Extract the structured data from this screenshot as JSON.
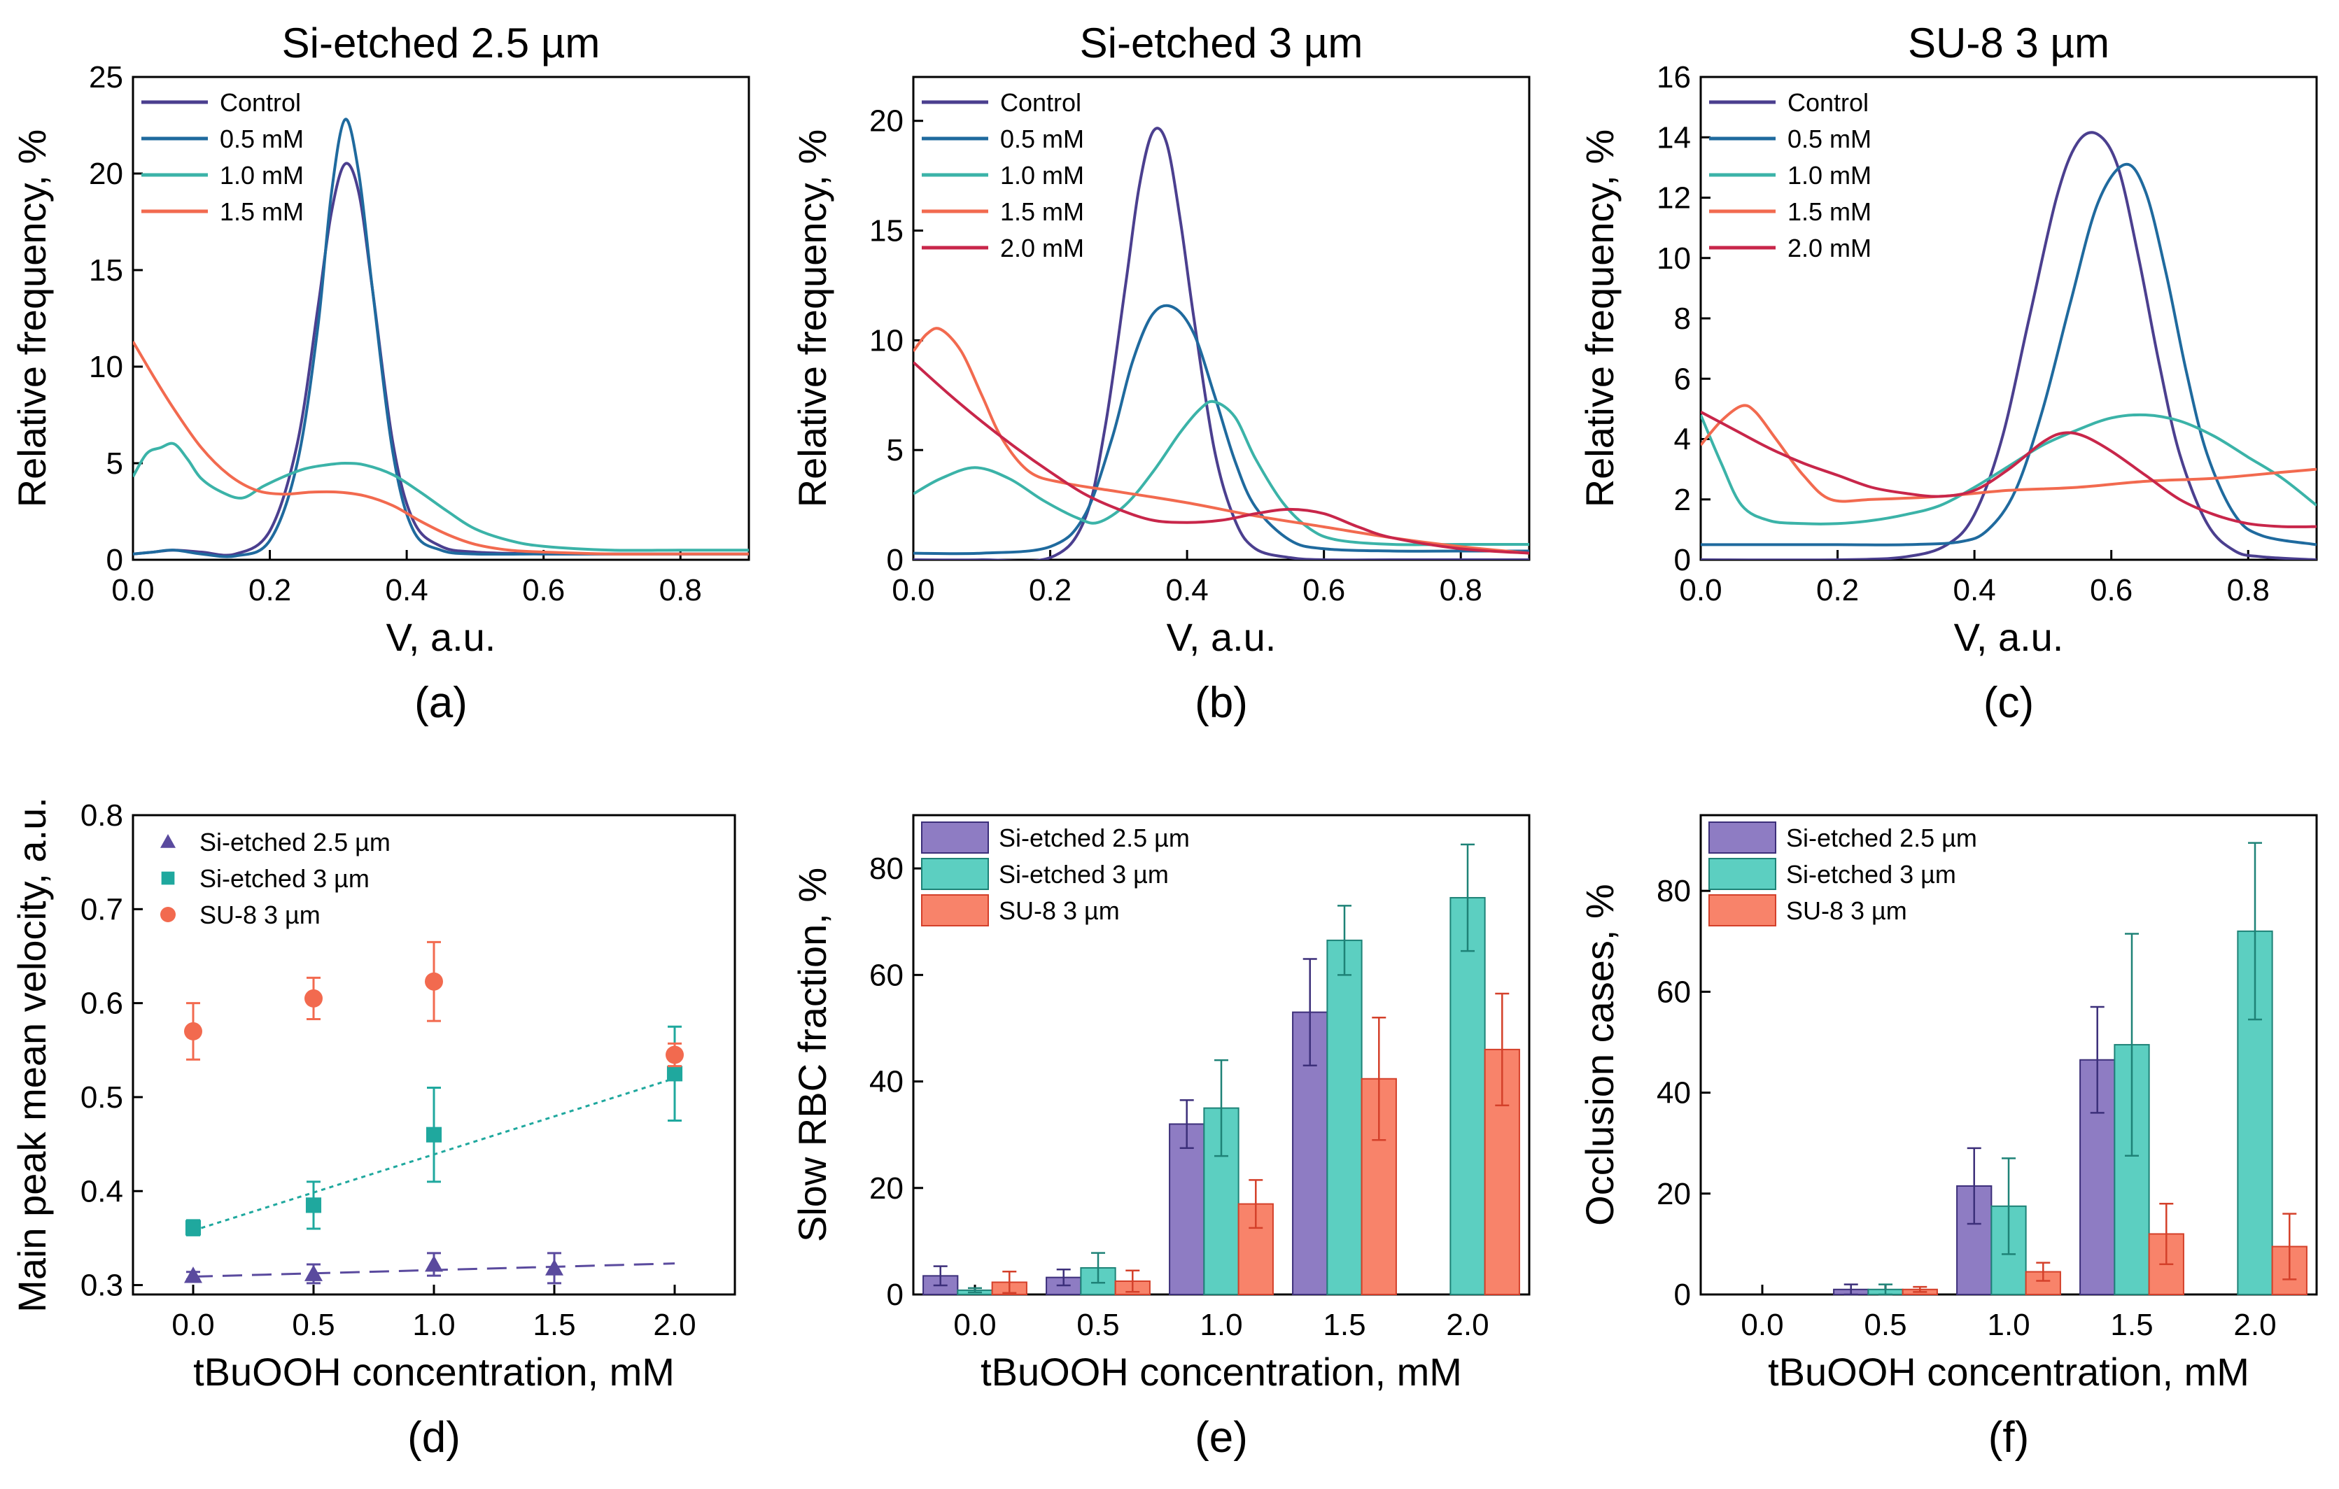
{
  "chart_data": [
    {
      "id": "a",
      "type": "line",
      "title": "Si-etched 2.5 µm",
      "xlabel": "V, a.u.",
      "ylabel": "Relative frequency, %",
      "panel_label": "(a)",
      "xlim": [
        0,
        0.9
      ],
      "ylim": [
        0,
        25
      ],
      "xticks": [
        "0.0",
        "0.2",
        "0.4",
        "0.6",
        "0.8"
      ],
      "yticks": [
        "0",
        "5",
        "10",
        "15",
        "20",
        "25"
      ],
      "legend_position": "top-left",
      "series": [
        {
          "name": "Control",
          "color": "#4B3F8F",
          "x": [
            0,
            0.03,
            0.06,
            0.1,
            0.15,
            0.2,
            0.24,
            0.27,
            0.29,
            0.31,
            0.33,
            0.35,
            0.38,
            0.41,
            0.45,
            0.5,
            0.6,
            0.7,
            0.8,
            0.9
          ],
          "y": [
            0.3,
            0.4,
            0.5,
            0.4,
            0.3,
            1.5,
            6,
            13,
            18,
            20.5,
            19,
            14,
            6,
            2,
            0.7,
            0.4,
            0.3,
            0.3,
            0.3,
            0.3
          ]
        },
        {
          "name": "0.5 mM",
          "color": "#1F6A9E",
          "x": [
            0,
            0.03,
            0.06,
            0.1,
            0.15,
            0.2,
            0.24,
            0.27,
            0.29,
            0.31,
            0.33,
            0.35,
            0.38,
            0.41,
            0.45,
            0.5,
            0.6,
            0.7,
            0.8,
            0.9
          ],
          "y": [
            0.3,
            0.4,
            0.5,
            0.3,
            0.2,
            1,
            5,
            12,
            19,
            22.8,
            20,
            14,
            5.5,
            1.5,
            0.5,
            0.3,
            0.3,
            0.3,
            0.3,
            0.3
          ]
        },
        {
          "name": "1.0 mM",
          "color": "#3BB3A8",
          "x": [
            0,
            0.02,
            0.04,
            0.06,
            0.08,
            0.1,
            0.13,
            0.16,
            0.19,
            0.22,
            0.25,
            0.28,
            0.31,
            0.34,
            0.38,
            0.42,
            0.46,
            0.5,
            0.55,
            0.6,
            0.7,
            0.8,
            0.9
          ],
          "y": [
            4.3,
            5.5,
            5.8,
            6,
            5.2,
            4.2,
            3.5,
            3.2,
            3.8,
            4.3,
            4.7,
            4.9,
            5,
            4.9,
            4.4,
            3.5,
            2.5,
            1.6,
            1,
            0.7,
            0.5,
            0.5,
            0.5
          ]
        },
        {
          "name": "1.5 mM",
          "color": "#F26A4F",
          "x": [
            0,
            0.03,
            0.06,
            0.1,
            0.14,
            0.18,
            0.22,
            0.26,
            0.3,
            0.34,
            0.38,
            0.42,
            0.46,
            0.5,
            0.55,
            0.6,
            0.7,
            0.8,
            0.9
          ],
          "y": [
            11.3,
            9.5,
            7.8,
            5.8,
            4.4,
            3.6,
            3.4,
            3.5,
            3.5,
            3.3,
            2.8,
            2,
            1.3,
            0.8,
            0.5,
            0.4,
            0.3,
            0.3,
            0.3
          ]
        }
      ]
    },
    {
      "id": "b",
      "type": "line",
      "title": "Si-etched 3 µm",
      "xlabel": "V, a.u.",
      "ylabel": "Relative frequency, %",
      "panel_label": "(b)",
      "xlim": [
        0,
        0.9
      ],
      "ylim": [
        0,
        22
      ],
      "xticks": [
        "0.0",
        "0.2",
        "0.4",
        "0.6",
        "0.8"
      ],
      "yticks": [
        "0",
        "5",
        "10",
        "15",
        "20"
      ],
      "legend_position": "top-left",
      "series": [
        {
          "name": "Control",
          "color": "#4B3F8F",
          "x": [
            0,
            0.1,
            0.2,
            0.25,
            0.28,
            0.31,
            0.33,
            0.35,
            0.37,
            0.39,
            0.41,
            0.44,
            0.47,
            0.5,
            0.55,
            0.6,
            0.7,
            0.8,
            0.9
          ],
          "y": [
            0,
            0,
            0.1,
            1.8,
            6,
            12.5,
            17,
            19.5,
            19,
            15.5,
            11,
            5,
            1.8,
            0.5,
            0.1,
            0,
            0,
            0,
            0
          ]
        },
        {
          "name": "0.5 mM",
          "color": "#1F6A9E",
          "x": [
            0,
            0.1,
            0.2,
            0.25,
            0.29,
            0.32,
            0.35,
            0.38,
            0.41,
            0.44,
            0.47,
            0.5,
            0.55,
            0.6,
            0.7,
            0.8,
            0.9
          ],
          "y": [
            0.3,
            0.3,
            0.6,
            2,
            5.5,
            9,
            11.2,
            11.5,
            10.3,
            7.5,
            4.5,
            2.4,
            0.9,
            0.5,
            0.4,
            0.4,
            0.4
          ]
        },
        {
          "name": "1.0 mM",
          "color": "#3BB3A8",
          "x": [
            0,
            0.04,
            0.09,
            0.14,
            0.19,
            0.24,
            0.27,
            0.31,
            0.35,
            0.39,
            0.42,
            0.44,
            0.47,
            0.5,
            0.54,
            0.58,
            0.62,
            0.7,
            0.8,
            0.9
          ],
          "y": [
            3,
            3.7,
            4.2,
            3.7,
            2.7,
            1.9,
            1.7,
            2.5,
            4,
            5.8,
            6.9,
            7.2,
            6.5,
            4.6,
            2.6,
            1.4,
            0.9,
            0.7,
            0.7,
            0.7
          ]
        },
        {
          "name": "1.5 mM",
          "color": "#F26A4F",
          "x": [
            0,
            0.02,
            0.04,
            0.07,
            0.1,
            0.13,
            0.17,
            0.22,
            0.3,
            0.4,
            0.5,
            0.6,
            0.7,
            0.8,
            0.9
          ],
          "y": [
            9.5,
            10.3,
            10.5,
            9.5,
            7.5,
            5.5,
            4,
            3.5,
            3.1,
            2.6,
            2,
            1.5,
            1,
            0.6,
            0.3
          ]
        },
        {
          "name": "2.0 mM",
          "color": "#C8264A",
          "x": [
            0,
            0.05,
            0.1,
            0.15,
            0.2,
            0.25,
            0.3,
            0.35,
            0.4,
            0.45,
            0.5,
            0.55,
            0.6,
            0.65,
            0.7,
            0.8,
            0.9
          ],
          "y": [
            9,
            7.6,
            6.3,
            5.1,
            4,
            3,
            2.3,
            1.8,
            1.7,
            1.8,
            2.1,
            2.3,
            2.1,
            1.5,
            1,
            0.5,
            0.3
          ]
        }
      ]
    },
    {
      "id": "c",
      "type": "line",
      "title": "SU-8 3 µm",
      "xlabel": "V, a.u.",
      "ylabel": "Relative frequency, %",
      "panel_label": "(c)",
      "xlim": [
        0,
        0.9
      ],
      "ylim": [
        0,
        16
      ],
      "xticks": [
        "0.0",
        "0.2",
        "0.4",
        "0.6",
        "0.8"
      ],
      "yticks": [
        "0",
        "2",
        "4",
        "6",
        "8",
        "10",
        "12",
        "14",
        "16"
      ],
      "legend_position": "top-left",
      "series": [
        {
          "name": "Control",
          "color": "#4B3F8F",
          "x": [
            0,
            0.2,
            0.3,
            0.36,
            0.4,
            0.44,
            0.48,
            0.52,
            0.55,
            0.58,
            0.61,
            0.64,
            0.67,
            0.7,
            0.74,
            0.78,
            0.82,
            0.9
          ],
          "y": [
            0,
            0,
            0.1,
            0.5,
            1.5,
            4,
            8,
            12,
            13.8,
            14.1,
            13,
            10,
            6.5,
            3.5,
            1.2,
            0.3,
            0.1,
            0
          ]
        },
        {
          "name": "0.5 mM",
          "color": "#1F6A9E",
          "x": [
            0,
            0.1,
            0.2,
            0.3,
            0.38,
            0.42,
            0.46,
            0.5,
            0.54,
            0.58,
            0.62,
            0.65,
            0.68,
            0.71,
            0.74,
            0.78,
            0.82,
            0.9
          ],
          "y": [
            0.5,
            0.5,
            0.5,
            0.5,
            0.6,
            1,
            2.3,
            5,
            8.5,
            11.8,
            13.1,
            12.2,
            9.5,
            6.2,
            3.5,
            1.5,
            0.8,
            0.5
          ]
        },
        {
          "name": "1.0 mM",
          "color": "#3BB3A8",
          "x": [
            0,
            0.03,
            0.06,
            0.1,
            0.15,
            0.2,
            0.25,
            0.3,
            0.35,
            0.4,
            0.45,
            0.5,
            0.55,
            0.6,
            0.65,
            0.7,
            0.75,
            0.8,
            0.85,
            0.9
          ],
          "y": [
            4.8,
            3.2,
            1.8,
            1.3,
            1.2,
            1.2,
            1.3,
            1.5,
            1.8,
            2.4,
            3.1,
            3.8,
            4.3,
            4.7,
            4.8,
            4.6,
            4.1,
            3.4,
            2.7,
            1.8
          ]
        },
        {
          "name": "1.5 mM",
          "color": "#F26A4F",
          "x": [
            0,
            0.03,
            0.06,
            0.08,
            0.11,
            0.15,
            0.19,
            0.25,
            0.35,
            0.45,
            0.55,
            0.65,
            0.75,
            0.85,
            0.9
          ],
          "y": [
            3.8,
            4.6,
            5.1,
            4.9,
            4,
            2.8,
            2,
            2,
            2.1,
            2.3,
            2.4,
            2.6,
            2.7,
            2.9,
            3
          ]
        },
        {
          "name": "2.0 mM",
          "color": "#C8264A",
          "x": [
            0,
            0.05,
            0.1,
            0.15,
            0.2,
            0.25,
            0.3,
            0.35,
            0.4,
            0.45,
            0.5,
            0.53,
            0.56,
            0.6,
            0.65,
            0.7,
            0.75,
            0.8,
            0.85,
            0.9
          ],
          "y": [
            4.9,
            4.3,
            3.7,
            3.2,
            2.8,
            2.4,
            2.2,
            2.1,
            2.3,
            3,
            3.9,
            4.2,
            4.1,
            3.6,
            2.8,
            2,
            1.5,
            1.2,
            1.1,
            1.1
          ]
        }
      ]
    },
    {
      "id": "d",
      "type": "scatter",
      "title": "",
      "xlabel": "tBuOOH concentration, mM",
      "ylabel": "Main peak mean velocity, a.u.",
      "panel_label": "(d)",
      "xlim": [
        -0.25,
        2.25
      ],
      "ylim": [
        0.29,
        0.8
      ],
      "xticks": [
        "0.0",
        "0.5",
        "1.0",
        "1.5",
        "2.0"
      ],
      "yticks": [
        "0.3",
        "0.4",
        "0.5",
        "0.6",
        "0.7",
        "0.8"
      ],
      "legend_position": "top-left",
      "series": [
        {
          "name": "Si-etched 2.5 µm",
          "marker": "triangle",
          "color": "#5A4A9E",
          "x": [
            0,
            0.5,
            1.0,
            1.5
          ],
          "y": [
            0.31,
            0.312,
            0.322,
            0.318
          ],
          "err": [
            0.004,
            0.01,
            0.012,
            0.016
          ],
          "fit": {
            "x": [
              0,
              2.0
            ],
            "y": [
              0.309,
              0.323
            ],
            "dash": "long"
          }
        },
        {
          "name": "Si-etched 3 µm",
          "marker": "square",
          "color": "#1FA89E",
          "x": [
            0,
            0.5,
            1.0,
            2.0
          ],
          "y": [
            0.361,
            0.385,
            0.46,
            0.525
          ],
          "err": [
            0.008,
            0.025,
            0.05,
            0.05
          ],
          "fit": {
            "x": [
              0,
              2.0
            ],
            "y": [
              0.358,
              0.52
            ],
            "dash": "dot"
          }
        },
        {
          "name": "SU-8 3 µm",
          "marker": "circle",
          "color": "#F26A4F",
          "x": [
            0,
            0.5,
            1.0,
            2.0
          ],
          "y": [
            0.57,
            0.605,
            0.623,
            0.545
          ],
          "err": [
            0.03,
            0.022,
            0.042,
            0.012
          ]
        }
      ]
    },
    {
      "id": "e",
      "type": "bar",
      "title": "",
      "xlabel": "tBuOOH concentration, mM",
      "ylabel": "Slow RBC fraction, %",
      "panel_label": "(e)",
      "categories": [
        "0.0",
        "0.5",
        "1.0",
        "1.5",
        "2.0"
      ],
      "ylim": [
        0,
        90
      ],
      "yticks": [
        "0",
        "20",
        "40",
        "60",
        "80"
      ],
      "legend_position": "top-left",
      "series": [
        {
          "name": "Si-etched 2.5 µm",
          "color": "#8E7CC3",
          "stroke": "#3C2F7A",
          "values": [
            3.5,
            3.2,
            32,
            53,
            null
          ],
          "err": [
            1.8,
            1.5,
            4.5,
            10,
            null
          ]
        },
        {
          "name": "Si-etched 3 µm",
          "color": "#5CCFC1",
          "stroke": "#1E8277",
          "values": [
            0.8,
            5,
            35,
            66.5,
            74.5
          ],
          "err": [
            0.4,
            2.8,
            9,
            6.5,
            10
          ]
        },
        {
          "name": "SU-8 3 µm",
          "color": "#F8836A",
          "stroke": "#D4402A",
          "values": [
            2.3,
            2.5,
            17,
            40.5,
            46
          ],
          "err": [
            2,
            2,
            4.5,
            11.5,
            10.5
          ]
        }
      ]
    },
    {
      "id": "f",
      "type": "bar",
      "title": "",
      "xlabel": "tBuOOH concentration, mM",
      "ylabel": "Occlusion cases, %",
      "panel_label": "(f)",
      "categories": [
        "0.0",
        "0.5",
        "1.0",
        "1.5",
        "2.0"
      ],
      "ylim": [
        0,
        95
      ],
      "yticks": [
        "0",
        "20",
        "40",
        "60",
        "80"
      ],
      "legend_position": "top-left",
      "series": [
        {
          "name": "Si-etched 2.5 µm",
          "color": "#8E7CC3",
          "stroke": "#3C2F7A",
          "values": [
            null,
            1,
            21.5,
            46.5,
            null
          ],
          "err": [
            null,
            1,
            7.5,
            10.5,
            null
          ]
        },
        {
          "name": "Si-etched 3 µm",
          "color": "#5CCFC1",
          "stroke": "#1E8277",
          "values": [
            null,
            1,
            17.5,
            49.5,
            72
          ],
          "err": [
            null,
            1,
            9.5,
            22,
            17.5
          ]
        },
        {
          "name": "SU-8 3 µm",
          "color": "#F8836A",
          "stroke": "#D4402A",
          "values": [
            null,
            1,
            4.5,
            12,
            9.5
          ],
          "err": [
            null,
            0.5,
            1.8,
            6,
            6.5
          ]
        }
      ]
    }
  ]
}
